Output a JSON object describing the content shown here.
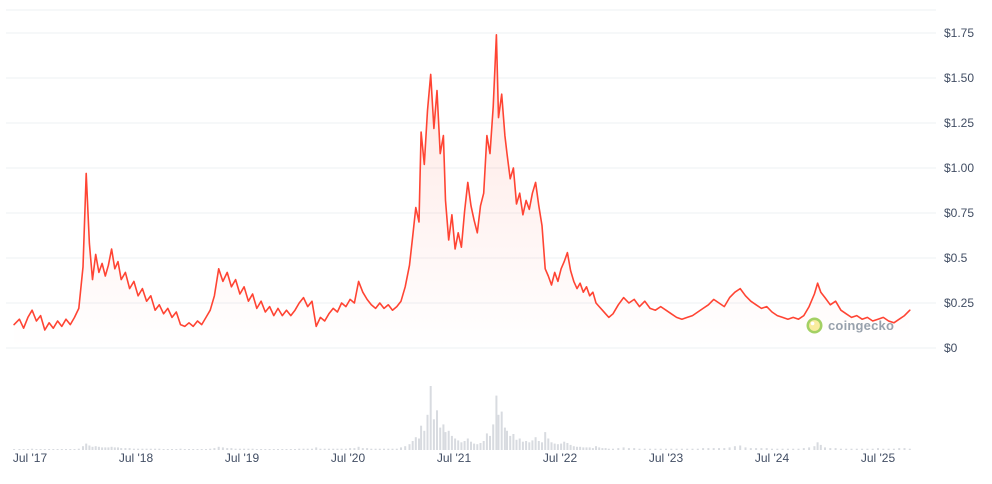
{
  "page": {
    "background": "#ffffff"
  },
  "watermark": {
    "text": "coingecko"
  },
  "chart_data": {
    "type": "line",
    "title": "",
    "xlabel": "",
    "ylabel": "",
    "currency": "USD",
    "line_color": "#ff4433",
    "area_fill": "#ff4e33",
    "area_opacity_top": 0.16,
    "grid_color": "#eef0f3",
    "volume_color": "#d8dbe0",
    "label_color": "#414d63",
    "legend": "none",
    "grid": "horizontal",
    "ylim": [
      0,
      1.88
    ],
    "y_ticks": [
      0,
      0.25,
      0.5,
      0.75,
      1,
      1.25,
      1.5,
      1.75
    ],
    "y_tick_labels": [
      "$0",
      "$0.25",
      "$0.5",
      "$0.75",
      "$1.00",
      "$1.25",
      "$1.50",
      "$1.75"
    ],
    "x_ticks": [
      2017.5,
      2018.5,
      2019.5,
      2020.5,
      2021.5,
      2022.5,
      2023.5,
      2024.5,
      2025.5
    ],
    "x_tick_labels": [
      "Jul '17",
      "Jul '18",
      "Jul '19",
      "Jul '20",
      "Jul '21",
      "Jul '22",
      "Jul '23",
      "Jul '24",
      "Jul '25"
    ],
    "points_format": [
      "year_decimal",
      "price_usd",
      "volume_relative"
    ],
    "points": [
      [
        2017.35,
        0.13,
        1
      ],
      [
        2017.4,
        0.16,
        1
      ],
      [
        2017.44,
        0.11,
        1
      ],
      [
        2017.48,
        0.17,
        1
      ],
      [
        2017.52,
        0.21,
        2
      ],
      [
        2017.56,
        0.15,
        1
      ],
      [
        2017.6,
        0.18,
        1
      ],
      [
        2017.64,
        0.1,
        1
      ],
      [
        2017.68,
        0.14,
        1
      ],
      [
        2017.72,
        0.11,
        1
      ],
      [
        2017.76,
        0.15,
        1
      ],
      [
        2017.8,
        0.12,
        1
      ],
      [
        2017.84,
        0.16,
        1
      ],
      [
        2017.88,
        0.13,
        1
      ],
      [
        2017.92,
        0.17,
        1
      ],
      [
        2017.96,
        0.22,
        2
      ],
      [
        2018.0,
        0.45,
        6
      ],
      [
        2018.03,
        0.97,
        10
      ],
      [
        2018.06,
        0.58,
        7
      ],
      [
        2018.09,
        0.38,
        5
      ],
      [
        2018.12,
        0.52,
        6
      ],
      [
        2018.15,
        0.42,
        5
      ],
      [
        2018.18,
        0.47,
        4
      ],
      [
        2018.21,
        0.4,
        4
      ],
      [
        2018.24,
        0.46,
        4
      ],
      [
        2018.27,
        0.55,
        5
      ],
      [
        2018.3,
        0.44,
        4
      ],
      [
        2018.33,
        0.48,
        4
      ],
      [
        2018.36,
        0.38,
        3
      ],
      [
        2018.4,
        0.42,
        3
      ],
      [
        2018.44,
        0.33,
        3
      ],
      [
        2018.48,
        0.37,
        2
      ],
      [
        2018.52,
        0.29,
        2
      ],
      [
        2018.56,
        0.33,
        2
      ],
      [
        2018.6,
        0.26,
        2
      ],
      [
        2018.64,
        0.29,
        2
      ],
      [
        2018.68,
        0.21,
        2
      ],
      [
        2018.72,
        0.24,
        2
      ],
      [
        2018.76,
        0.19,
        1
      ],
      [
        2018.8,
        0.22,
        1
      ],
      [
        2018.84,
        0.17,
        1
      ],
      [
        2018.88,
        0.2,
        1
      ],
      [
        2018.92,
        0.13,
        2
      ],
      [
        2018.96,
        0.12,
        1
      ],
      [
        2019.0,
        0.14,
        1
      ],
      [
        2019.04,
        0.12,
        1
      ],
      [
        2019.08,
        0.15,
        1
      ],
      [
        2019.12,
        0.13,
        1
      ],
      [
        2019.16,
        0.17,
        1
      ],
      [
        2019.2,
        0.21,
        2
      ],
      [
        2019.24,
        0.29,
        3
      ],
      [
        2019.28,
        0.44,
        5
      ],
      [
        2019.32,
        0.37,
        4
      ],
      [
        2019.36,
        0.42,
        3
      ],
      [
        2019.4,
        0.34,
        3
      ],
      [
        2019.44,
        0.38,
        2
      ],
      [
        2019.48,
        0.3,
        2
      ],
      [
        2019.52,
        0.34,
        2
      ],
      [
        2019.56,
        0.26,
        2
      ],
      [
        2019.6,
        0.3,
        2
      ],
      [
        2019.64,
        0.22,
        1
      ],
      [
        2019.68,
        0.26,
        1
      ],
      [
        2019.72,
        0.2,
        1
      ],
      [
        2019.76,
        0.23,
        1
      ],
      [
        2019.8,
        0.18,
        1
      ],
      [
        2019.84,
        0.22,
        1
      ],
      [
        2019.88,
        0.18,
        1
      ],
      [
        2019.92,
        0.21,
        1
      ],
      [
        2019.96,
        0.18,
        1
      ],
      [
        2020.0,
        0.21,
        1
      ],
      [
        2020.04,
        0.25,
        2
      ],
      [
        2020.08,
        0.28,
        2
      ],
      [
        2020.12,
        0.23,
        2
      ],
      [
        2020.16,
        0.26,
        2
      ],
      [
        2020.2,
        0.12,
        4
      ],
      [
        2020.24,
        0.17,
        2
      ],
      [
        2020.28,
        0.15,
        2
      ],
      [
        2020.32,
        0.19,
        2
      ],
      [
        2020.36,
        0.22,
        2
      ],
      [
        2020.4,
        0.2,
        2
      ],
      [
        2020.44,
        0.25,
        2
      ],
      [
        2020.48,
        0.23,
        2
      ],
      [
        2020.52,
        0.27,
        3
      ],
      [
        2020.56,
        0.25,
        3
      ],
      [
        2020.6,
        0.37,
        5
      ],
      [
        2020.64,
        0.31,
        3
      ],
      [
        2020.68,
        0.27,
        3
      ],
      [
        2020.72,
        0.24,
        2
      ],
      [
        2020.76,
        0.22,
        2
      ],
      [
        2020.8,
        0.25,
        2
      ],
      [
        2020.84,
        0.22,
        2
      ],
      [
        2020.88,
        0.24,
        2
      ],
      [
        2020.92,
        0.21,
        2
      ],
      [
        2020.96,
        0.23,
        2
      ],
      [
        2021.0,
        0.26,
        4
      ],
      [
        2021.04,
        0.34,
        6
      ],
      [
        2021.08,
        0.46,
        9
      ],
      [
        2021.11,
        0.62,
        14
      ],
      [
        2021.14,
        0.78,
        20
      ],
      [
        2021.17,
        0.7,
        18
      ],
      [
        2021.19,
        1.2,
        38
      ],
      [
        2021.22,
        1.02,
        30
      ],
      [
        2021.25,
        1.32,
        55
      ],
      [
        2021.28,
        1.52,
        100
      ],
      [
        2021.31,
        1.22,
        48
      ],
      [
        2021.34,
        1.43,
        62
      ],
      [
        2021.37,
        1.08,
        35
      ],
      [
        2021.4,
        1.18,
        40
      ],
      [
        2021.42,
        0.82,
        28
      ],
      [
        2021.45,
        0.6,
        30
      ],
      [
        2021.48,
        0.74,
        22
      ],
      [
        2021.51,
        0.55,
        18
      ],
      [
        2021.54,
        0.64,
        15
      ],
      [
        2021.57,
        0.56,
        12
      ],
      [
        2021.6,
        0.76,
        14
      ],
      [
        2021.63,
        0.92,
        18
      ],
      [
        2021.66,
        0.79,
        13
      ],
      [
        2021.69,
        0.71,
        10
      ],
      [
        2021.72,
        0.64,
        9
      ],
      [
        2021.75,
        0.79,
        11
      ],
      [
        2021.78,
        0.86,
        14
      ],
      [
        2021.81,
        1.18,
        26
      ],
      [
        2021.84,
        1.08,
        22
      ],
      [
        2021.87,
        1.34,
        40
      ],
      [
        2021.9,
        1.74,
        85
      ],
      [
        2021.92,
        1.28,
        55
      ],
      [
        2021.95,
        1.41,
        60
      ],
      [
        2021.98,
        1.18,
        35
      ],
      [
        2022.0,
        1.08,
        30
      ],
      [
        2022.03,
        0.94,
        22
      ],
      [
        2022.06,
        1.0,
        25
      ],
      [
        2022.09,
        0.8,
        16
      ],
      [
        2022.12,
        0.86,
        18
      ],
      [
        2022.15,
        0.74,
        13
      ],
      [
        2022.18,
        0.82,
        14
      ],
      [
        2022.21,
        0.77,
        12
      ],
      [
        2022.24,
        0.86,
        15
      ],
      [
        2022.27,
        0.92,
        20
      ],
      [
        2022.3,
        0.79,
        14
      ],
      [
        2022.33,
        0.68,
        12
      ],
      [
        2022.36,
        0.44,
        28
      ],
      [
        2022.39,
        0.4,
        18
      ],
      [
        2022.42,
        0.35,
        12
      ],
      [
        2022.45,
        0.42,
        10
      ],
      [
        2022.48,
        0.37,
        9
      ],
      [
        2022.51,
        0.44,
        10
      ],
      [
        2022.54,
        0.48,
        13
      ],
      [
        2022.57,
        0.53,
        11
      ],
      [
        2022.6,
        0.43,
        8
      ],
      [
        2022.63,
        0.37,
        6
      ],
      [
        2022.66,
        0.33,
        5
      ],
      [
        2022.69,
        0.36,
        5
      ],
      [
        2022.72,
        0.31,
        4
      ],
      [
        2022.75,
        0.34,
        4
      ],
      [
        2022.78,
        0.29,
        4
      ],
      [
        2022.81,
        0.31,
        3
      ],
      [
        2022.84,
        0.25,
        6
      ],
      [
        2022.87,
        0.23,
        4
      ],
      [
        2022.9,
        0.21,
        3
      ],
      [
        2022.93,
        0.19,
        3
      ],
      [
        2022.96,
        0.17,
        2
      ],
      [
        2023.0,
        0.19,
        2
      ],
      [
        2023.05,
        0.24,
        3
      ],
      [
        2023.1,
        0.28,
        4
      ],
      [
        2023.15,
        0.25,
        3
      ],
      [
        2023.2,
        0.27,
        3
      ],
      [
        2023.25,
        0.23,
        2
      ],
      [
        2023.3,
        0.26,
        2
      ],
      [
        2023.35,
        0.22,
        2
      ],
      [
        2023.4,
        0.21,
        2
      ],
      [
        2023.45,
        0.23,
        2
      ],
      [
        2023.5,
        0.21,
        2
      ],
      [
        2023.55,
        0.19,
        2
      ],
      [
        2023.6,
        0.17,
        2
      ],
      [
        2023.65,
        0.16,
        2
      ],
      [
        2023.7,
        0.17,
        2
      ],
      [
        2023.75,
        0.18,
        2
      ],
      [
        2023.8,
        0.2,
        2
      ],
      [
        2023.85,
        0.22,
        3
      ],
      [
        2023.9,
        0.24,
        3
      ],
      [
        2023.95,
        0.27,
        3
      ],
      [
        2024.0,
        0.25,
        3
      ],
      [
        2024.05,
        0.23,
        3
      ],
      [
        2024.1,
        0.28,
        4
      ],
      [
        2024.15,
        0.31,
        6
      ],
      [
        2024.2,
        0.33,
        7
      ],
      [
        2024.25,
        0.29,
        4
      ],
      [
        2024.3,
        0.26,
        3
      ],
      [
        2024.35,
        0.24,
        3
      ],
      [
        2024.4,
        0.22,
        3
      ],
      [
        2024.45,
        0.23,
        3
      ],
      [
        2024.5,
        0.2,
        2
      ],
      [
        2024.55,
        0.18,
        2
      ],
      [
        2024.6,
        0.17,
        2
      ],
      [
        2024.65,
        0.16,
        2
      ],
      [
        2024.7,
        0.17,
        2
      ],
      [
        2024.75,
        0.16,
        2
      ],
      [
        2024.8,
        0.18,
        3
      ],
      [
        2024.85,
        0.23,
        4
      ],
      [
        2024.9,
        0.3,
        6
      ],
      [
        2024.93,
        0.36,
        12
      ],
      [
        2024.96,
        0.31,
        8
      ],
      [
        2025.0,
        0.28,
        4
      ],
      [
        2025.05,
        0.24,
        3
      ],
      [
        2025.1,
        0.26,
        3
      ],
      [
        2025.15,
        0.21,
        2
      ],
      [
        2025.2,
        0.19,
        2
      ],
      [
        2025.25,
        0.17,
        2
      ],
      [
        2025.3,
        0.18,
        2
      ],
      [
        2025.35,
        0.16,
        2
      ],
      [
        2025.4,
        0.17,
        2
      ],
      [
        2025.45,
        0.15,
        2
      ],
      [
        2025.5,
        0.16,
        3
      ],
      [
        2025.55,
        0.17,
        2
      ],
      [
        2025.6,
        0.15,
        2
      ],
      [
        2025.65,
        0.14,
        2
      ],
      [
        2025.7,
        0.16,
        3
      ],
      [
        2025.75,
        0.18,
        3
      ],
      [
        2025.8,
        0.21,
        2
      ]
    ]
  }
}
